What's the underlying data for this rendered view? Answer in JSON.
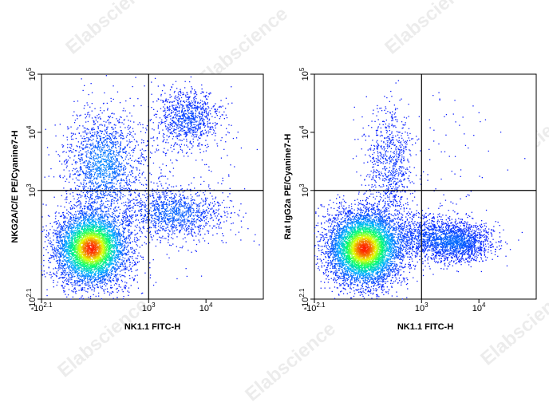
{
  "watermark": "Elabscience",
  "chart_data": [
    {
      "type": "scatter",
      "title": "",
      "xlabel": "NK1.1 FITC-H",
      "ylabel": "NKG2A/C/E PE/Cyanine7-H",
      "x_scale": "biexponential",
      "y_scale": "biexponential",
      "x_ticks": [
        {
          "value": -125.9,
          "base": "-10",
          "exp": "2.1"
        },
        {
          "value": 1000,
          "base": "10",
          "exp": "3"
        },
        {
          "value": 10000,
          "base": "10",
          "exp": "4"
        }
      ],
      "y_ticks": [
        {
          "value": -125.9,
          "base": "-10",
          "exp": "2.1"
        },
        {
          "value": 1000,
          "base": "10",
          "exp": "3"
        },
        {
          "value": 10000,
          "base": "10",
          "exp": "4"
        },
        {
          "value": 100000,
          "base": "10",
          "exp": "5"
        }
      ],
      "gate": {
        "x": 1000,
        "y": 1000
      },
      "colormap": [
        "#0a1cff",
        "#00b4ff",
        "#00ff6e",
        "#e6ff00",
        "#ff1e00"
      ],
      "populations": [
        {
          "x_log": 2.0,
          "y_log": 2.0,
          "sx": 0.33,
          "sy": 0.33,
          "weight": 0.56
        },
        {
          "x_log": 2.2,
          "y_log": 3.45,
          "sx": 0.33,
          "sy": 0.45,
          "weight": 0.18
        },
        {
          "x_log": 3.7,
          "y_log": 4.25,
          "sx": 0.28,
          "sy": 0.25,
          "weight": 0.1
        },
        {
          "x_log": 3.45,
          "y_log": 2.6,
          "sx": 0.45,
          "sy": 0.22,
          "weight": 0.13
        },
        {
          "x_log": 3.3,
          "y_log": 3.3,
          "sx": 0.7,
          "sy": 0.75,
          "weight": 0.03
        }
      ]
    },
    {
      "type": "scatter",
      "title": "",
      "xlabel": "NK1.1 FITC-H",
      "ylabel": "Rat IgG2a PE/Cyanine7-H",
      "x_scale": "biexponential",
      "y_scale": "biexponential",
      "x_ticks": [
        {
          "value": -125.9,
          "base": "-10",
          "exp": "2.1"
        },
        {
          "value": 1000,
          "base": "10",
          "exp": "3"
        },
        {
          "value": 10000,
          "base": "10",
          "exp": "4"
        }
      ],
      "y_ticks": [
        {
          "value": -125.9,
          "base": "-10",
          "exp": "2.1"
        },
        {
          "value": 1000,
          "base": "10",
          "exp": "3"
        },
        {
          "value": 10000,
          "base": "10",
          "exp": "4"
        },
        {
          "value": 100000,
          "base": "10",
          "exp": "5"
        }
      ],
      "gate": {
        "x": 1000,
        "y": 1000
      },
      "colormap": [
        "#0a1cff",
        "#00b4ff",
        "#00ff6e",
        "#e6ff00",
        "#ff1e00"
      ],
      "populations": [
        {
          "x_log": 2.0,
          "y_log": 2.0,
          "sx": 0.33,
          "sy": 0.33,
          "weight": 0.65
        },
        {
          "x_log": 2.45,
          "y_log": 3.4,
          "sx": 0.22,
          "sy": 0.55,
          "weight": 0.09
        },
        {
          "x_log": 3.65,
          "y_log": 2.1,
          "sx": 0.3,
          "sy": 0.17,
          "weight": 0.15
        },
        {
          "x_log": 3.1,
          "y_log": 2.2,
          "sx": 0.35,
          "sy": 0.2,
          "weight": 0.1
        },
        {
          "x_log": 3.3,
          "y_log": 3.5,
          "sx": 0.6,
          "sy": 0.7,
          "weight": 0.01
        }
      ]
    }
  ]
}
